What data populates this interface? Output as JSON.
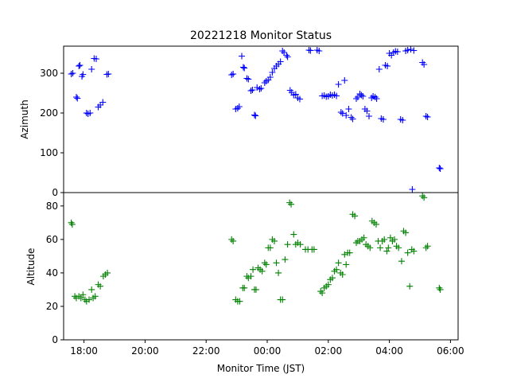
{
  "chart_data": [
    {
      "type": "scatter",
      "title": "20221218 Monitor Status",
      "ylabel": "Azimuth",
      "xlabel": "",
      "ylim": [
        0,
        368
      ],
      "xlim": [
        "17:20",
        "30:15"
      ],
      "yticks": [
        0,
        100,
        200,
        300
      ],
      "marker": "+",
      "color": "#0000ff",
      "series": [
        {
          "name": "",
          "points": [
            [
              "17:35",
              298
            ],
            [
              "17:38",
              300
            ],
            [
              "17:45",
              240
            ],
            [
              "17:47",
              237
            ],
            [
              "17:50",
              318
            ],
            [
              "17:52",
              320
            ],
            [
              "17:56",
              292
            ],
            [
              "17:58",
              297
            ],
            [
              "18:05",
              200
            ],
            [
              "18:08",
              198
            ],
            [
              "18:12",
              200
            ],
            [
              "18:15",
              310
            ],
            [
              "18:20",
              337
            ],
            [
              "18:24",
              336
            ],
            [
              "18:28",
              215
            ],
            [
              "18:32",
              220
            ],
            [
              "18:37",
              227
            ],
            [
              "18:45",
              297
            ],
            [
              "18:48",
              298
            ],
            [
              "22:50",
              296
            ],
            [
              "22:53",
              298
            ],
            [
              "22:58",
              210
            ],
            [
              "23:02",
              212
            ],
            [
              "23:05",
              216
            ],
            [
              "23:10",
              343
            ],
            [
              "23:13",
              315
            ],
            [
              "23:15",
              313
            ],
            [
              "23:20",
              287
            ],
            [
              "23:23",
              285
            ],
            [
              "23:28",
              256
            ],
            [
              "23:31",
              258
            ],
            [
              "23:35",
              195
            ],
            [
              "23:37",
              193
            ],
            [
              "23:40",
              264
            ],
            [
              "23:45",
              260
            ],
            [
              "23:48",
              262
            ],
            [
              "23:55",
              276
            ],
            [
              "23:58",
              280
            ],
            [
              "00:02",
              283
            ],
            [
              "00:06",
              290
            ],
            [
              "00:10",
              302
            ],
            [
              "00:14",
              312
            ],
            [
              "00:18",
              318
            ],
            [
              "00:22",
              323
            ],
            [
              "00:26",
              329
            ],
            [
              "00:30",
              356
            ],
            [
              "00:33",
              352
            ],
            [
              "00:38",
              345
            ],
            [
              "00:40",
              341
            ],
            [
              "00:45",
              257
            ],
            [
              "00:48",
              252
            ],
            [
              "00:52",
              245
            ],
            [
              "00:56",
              247
            ],
            [
              "01:00",
              238
            ],
            [
              "01:04",
              235
            ],
            [
              "01:22",
              358
            ],
            [
              "01:25",
              357
            ],
            [
              "01:38",
              358
            ],
            [
              "01:42",
              356
            ],
            [
              "01:48",
              243
            ],
            [
              "01:52",
              244
            ],
            [
              "01:56",
              241
            ],
            [
              "02:00",
              242
            ],
            [
              "02:04",
              246
            ],
            [
              "02:08",
              244
            ],
            [
              "02:12",
              246
            ],
            [
              "02:16",
              243
            ],
            [
              "02:20",
              272
            ],
            [
              "02:25",
              202
            ],
            [
              "02:28",
              199
            ],
            [
              "02:32",
              282
            ],
            [
              "02:35",
              194
            ],
            [
              "02:40",
              210
            ],
            [
              "02:45",
              189
            ],
            [
              "02:48",
              185
            ],
            [
              "02:55",
              236
            ],
            [
              "02:58",
              240
            ],
            [
              "03:02",
              248
            ],
            [
              "03:05",
              245
            ],
            [
              "03:08",
              242
            ],
            [
              "03:12",
              210
            ],
            [
              "03:16",
              205
            ],
            [
              "03:20",
              192
            ],
            [
              "03:25",
              238
            ],
            [
              "03:28",
              242
            ],
            [
              "03:32",
              240
            ],
            [
              "03:35",
              236
            ],
            [
              "03:40",
              310
            ],
            [
              "03:44",
              186
            ],
            [
              "03:48",
              184
            ],
            [
              "03:52",
              320
            ],
            [
              "03:56",
              318
            ],
            [
              "04:00",
              350
            ],
            [
              "04:04",
              345
            ],
            [
              "04:08",
              352
            ],
            [
              "04:12",
              355
            ],
            [
              "04:16",
              354
            ],
            [
              "04:22",
              184
            ],
            [
              "04:26",
              182
            ],
            [
              "04:32",
              356
            ],
            [
              "04:36",
              358
            ],
            [
              "04:42",
              360
            ],
            [
              "04:45",
              8
            ],
            [
              "04:48",
              357
            ],
            [
              "05:05",
              327
            ],
            [
              "05:08",
              322
            ],
            [
              "05:12",
              192
            ],
            [
              "05:15",
              190
            ],
            [
              "05:38",
              62
            ],
            [
              "05:40",
              60
            ]
          ]
        }
      ]
    },
    {
      "type": "scatter",
      "title": "",
      "ylabel": "Altitude",
      "xlabel": "Monitor Time (JST)",
      "ylim": [
        0,
        88
      ],
      "xlim": [
        "17:20",
        "30:15"
      ],
      "yticks": [
        0,
        20,
        40,
        60,
        80
      ],
      "xticks": [
        "18:00",
        "20:00",
        "22:00",
        "00:00",
        "02:00",
        "04:00",
        "06:00"
      ],
      "marker": "+",
      "color": "#008000",
      "series": [
        {
          "name": "",
          "points": [
            [
              "17:35",
              70
            ],
            [
              "17:37",
              69
            ],
            [
              "17:42",
              26
            ],
            [
              "17:45",
              25
            ],
            [
              "17:50",
              26
            ],
            [
              "17:54",
              25
            ],
            [
              "17:58",
              27
            ],
            [
              "18:02",
              24
            ],
            [
              "18:05",
              23
            ],
            [
              "18:10",
              24
            ],
            [
              "18:15",
              30
            ],
            [
              "18:18",
              25
            ],
            [
              "18:22",
              26
            ],
            [
              "18:28",
              33
            ],
            [
              "18:32",
              32
            ],
            [
              "18:38",
              38
            ],
            [
              "18:42",
              39
            ],
            [
              "18:46",
              40
            ],
            [
              "22:50",
              60
            ],
            [
              "22:53",
              59
            ],
            [
              "22:58",
              24
            ],
            [
              "23:02",
              23
            ],
            [
              "23:06",
              23
            ],
            [
              "23:12",
              31
            ],
            [
              "23:15",
              31
            ],
            [
              "23:20",
              38
            ],
            [
              "23:23",
              37
            ],
            [
              "23:28",
              38
            ],
            [
              "23:32",
              42
            ],
            [
              "23:35",
              30
            ],
            [
              "23:38",
              30
            ],
            [
              "23:42",
              43
            ],
            [
              "23:46",
              42
            ],
            [
              "23:50",
              41
            ],
            [
              "23:55",
              46
            ],
            [
              "23:58",
              45
            ],
            [
              "00:02",
              55
            ],
            [
              "00:06",
              55
            ],
            [
              "00:10",
              60
            ],
            [
              "00:14",
              59
            ],
            [
              "00:18",
              46
            ],
            [
              "00:22",
              40
            ],
            [
              "00:26",
              24
            ],
            [
              "00:30",
              24
            ],
            [
              "00:35",
              48
            ],
            [
              "00:40",
              57
            ],
            [
              "00:44",
              82
            ],
            [
              "00:47",
              81
            ],
            [
              "00:52",
              63
            ],
            [
              "00:56",
              57
            ],
            [
              "01:00",
              58
            ],
            [
              "01:05",
              57
            ],
            [
              "01:15",
              54
            ],
            [
              "01:20",
              54
            ],
            [
              "01:28",
              54
            ],
            [
              "01:32",
              54
            ],
            [
              "01:45",
              29
            ],
            [
              "01:48",
              28
            ],
            [
              "01:52",
              31
            ],
            [
              "01:56",
              32
            ],
            [
              "02:00",
              33
            ],
            [
              "02:04",
              36
            ],
            [
              "02:08",
              37
            ],
            [
              "02:12",
              41
            ],
            [
              "02:16",
              42
            ],
            [
              "02:20",
              46
            ],
            [
              "02:24",
              40
            ],
            [
              "02:28",
              39
            ],
            [
              "02:32",
              51
            ],
            [
              "02:35",
              45
            ],
            [
              "02:38",
              52
            ],
            [
              "02:42",
              52
            ],
            [
              "02:48",
              75
            ],
            [
              "02:52",
              74
            ],
            [
              "02:55",
              58
            ],
            [
              "02:58",
              59
            ],
            [
              "03:02",
              59
            ],
            [
              "03:06",
              60
            ],
            [
              "03:10",
              61
            ],
            [
              "03:14",
              57
            ],
            [
              "03:18",
              56
            ],
            [
              "03:22",
              55
            ],
            [
              "03:26",
              71
            ],
            [
              "03:30",
              70
            ],
            [
              "03:34",
              69
            ],
            [
              "03:38",
              59
            ],
            [
              "03:42",
              55
            ],
            [
              "03:46",
              59
            ],
            [
              "03:50",
              60
            ],
            [
              "03:55",
              53
            ],
            [
              "03:58",
              55
            ],
            [
              "04:02",
              61
            ],
            [
              "04:06",
              59
            ],
            [
              "04:10",
              60
            ],
            [
              "04:14",
              56
            ],
            [
              "04:18",
              55
            ],
            [
              "04:24",
              47
            ],
            [
              "04:28",
              65
            ],
            [
              "04:32",
              64
            ],
            [
              "04:36",
              52
            ],
            [
              "04:40",
              32
            ],
            [
              "04:44",
              54
            ],
            [
              "04:48",
              53
            ],
            [
              "05:05",
              86
            ],
            [
              "05:08",
              85
            ],
            [
              "05:12",
              55
            ],
            [
              "05:15",
              56
            ],
            [
              "05:38",
              31
            ],
            [
              "05:40",
              30
            ]
          ]
        }
      ]
    }
  ]
}
